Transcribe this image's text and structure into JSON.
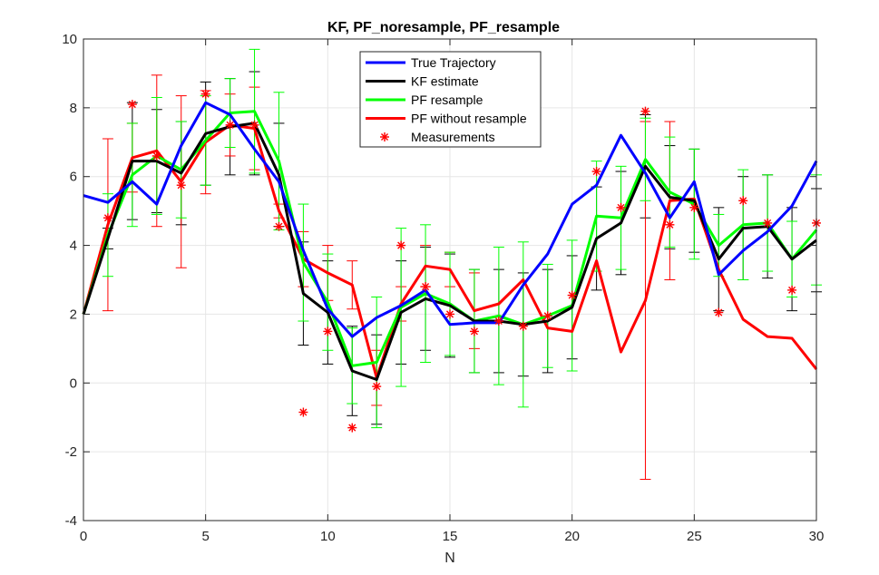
{
  "chart_data": {
    "type": "line",
    "title": "KF, PF_noresample, PF_resample",
    "xlabel": "N",
    "ylabel": "",
    "xlim": [
      0,
      30
    ],
    "ylim": [
      -4,
      10
    ],
    "xticks": [
      "0",
      "5",
      "10",
      "15",
      "20",
      "25",
      "30"
    ],
    "yticks": [
      "-4",
      "-2",
      "0",
      "2",
      "4",
      "6",
      "8",
      "10"
    ],
    "grid": true,
    "legend_position": "top-center",
    "x": [
      0,
      1,
      2,
      3,
      4,
      5,
      6,
      7,
      8,
      9,
      10,
      11,
      12,
      13,
      14,
      15,
      16,
      17,
      18,
      19,
      20,
      21,
      22,
      23,
      24,
      25,
      26,
      27,
      28,
      29,
      30
    ],
    "series": [
      {
        "name": "True Trajectory",
        "color": "#0000ff",
        "style": "line",
        "values": [
          5.45,
          5.25,
          5.85,
          5.2,
          6.9,
          8.15,
          7.8,
          6.8,
          5.85,
          3.85,
          2.15,
          1.35,
          1.9,
          2.25,
          2.7,
          1.7,
          1.75,
          1.75,
          2.85,
          3.75,
          5.2,
          5.75,
          7.2,
          6.1,
          4.8,
          5.85,
          3.15,
          3.85,
          4.4,
          5.15,
          6.45
        ]
      },
      {
        "name": "KF estimate",
        "color": "#000000",
        "style": "line",
        "values": [
          2.0,
          4.2,
          6.45,
          6.45,
          6.1,
          7.25,
          7.45,
          7.55,
          6.05,
          2.6,
          2.05,
          0.35,
          0.1,
          2.05,
          2.45,
          2.25,
          1.8,
          1.8,
          1.7,
          1.8,
          2.2,
          4.2,
          4.65,
          6.3,
          5.4,
          5.3,
          3.6,
          4.5,
          4.55,
          3.6,
          4.15
        ],
        "errors": [
          0,
          0.3,
          1.7,
          1.5,
          1.5,
          1.5,
          1.4,
          1.5,
          1.5,
          1.5,
          1.5,
          1.3,
          1.3,
          1.5,
          1.5,
          1.5,
          1.5,
          1.5,
          1.5,
          1.5,
          1.5,
          1.5,
          1.5,
          1.5,
          1.5,
          1.5,
          1.5,
          1.5,
          1.5,
          1.5,
          1.5
        ]
      },
      {
        "name": "PF resample",
        "color": "#00ff00",
        "style": "line",
        "values": [
          2.0,
          4.3,
          6.05,
          6.6,
          6.2,
          7.05,
          7.85,
          7.9,
          6.45,
          3.5,
          2.35,
          0.5,
          0.6,
          2.2,
          2.6,
          2.3,
          1.8,
          1.95,
          1.7,
          1.95,
          2.25,
          4.85,
          4.8,
          6.5,
          5.55,
          5.2,
          4.0,
          4.6,
          4.65,
          3.6,
          4.45
        ],
        "errors": [
          0,
          1.2,
          1.5,
          1.7,
          1.4,
          1.3,
          1.0,
          1.8,
          2.0,
          1.7,
          1.4,
          1.1,
          1.9,
          2.3,
          2.0,
          1.5,
          1.5,
          2.0,
          2.4,
          1.5,
          1.9,
          1.6,
          1.5,
          1.2,
          1.6,
          1.6,
          0.9,
          1.6,
          1.4,
          1.1,
          1.6
        ]
      },
      {
        "name": "PF without resample",
        "color": "#ff0000",
        "style": "line",
        "values": [
          2.0,
          4.6,
          6.55,
          6.75,
          5.85,
          7.0,
          7.5,
          7.4,
          5.0,
          3.6,
          3.2,
          2.85,
          0.15,
          2.3,
          3.4,
          3.3,
          2.1,
          2.3,
          3.0,
          1.6,
          1.5,
          3.55,
          0.9,
          2.4,
          5.3,
          5.35,
          3.3,
          1.85,
          1.35,
          1.3,
          0.4
        ],
        "errors": [
          0,
          2.5,
          1.0,
          2.2,
          2.5,
          1.5,
          0.9,
          1.2,
          0.2,
          0.8,
          0.8,
          0.7,
          0.8,
          0.5,
          0.6,
          0.5,
          1.1,
          0.0,
          0.0,
          0.0,
          0.0,
          0.0,
          0.0,
          5.2,
          2.3,
          0.0,
          0.0,
          0.0,
          0.0,
          0.0,
          0.0
        ]
      },
      {
        "name": "Measurements",
        "color": "#ff0000",
        "style": "marker",
        "values": [
          null,
          4.8,
          8.1,
          6.6,
          5.75,
          8.4,
          7.5,
          7.5,
          4.55,
          -0.85,
          1.5,
          -1.3,
          -0.1,
          4.0,
          2.8,
          2.0,
          1.5,
          1.8,
          1.65,
          1.95,
          2.55,
          6.15,
          5.1,
          7.9,
          4.6,
          5.1,
          2.05,
          5.3,
          4.65,
          2.7,
          4.65
        ]
      }
    ]
  }
}
